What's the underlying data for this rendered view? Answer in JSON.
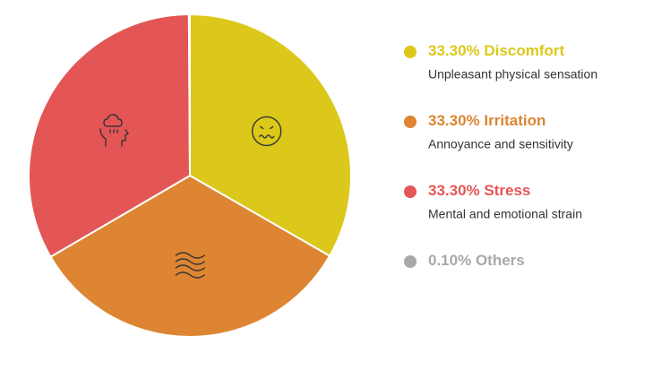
{
  "chart_data": {
    "type": "pie",
    "categories": [
      "Discomfort",
      "Irritation",
      "Stress",
      "Others"
    ],
    "values": [
      33.3,
      33.3,
      33.3,
      0.1
    ],
    "value_labels": [
      "33.30%",
      "33.30%",
      "33.30%",
      "0.10%"
    ],
    "descriptions": [
      "Unpleasant physical sensation",
      "Annoyance and sensitivity",
      "Mental and emotional strain",
      null
    ],
    "colors": [
      "#dcc81a",
      "#dd8532",
      "#e35655",
      "#a8a8a8"
    ]
  }
}
